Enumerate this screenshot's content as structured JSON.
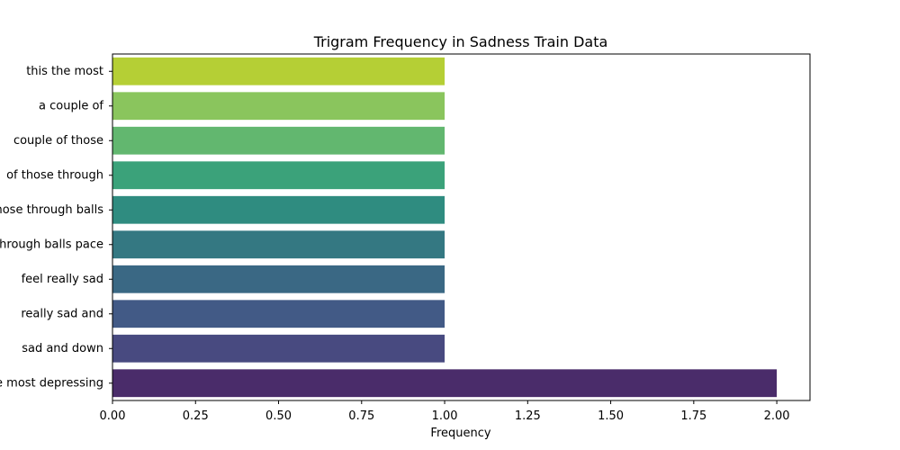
{
  "chart_data": {
    "type": "bar",
    "orientation": "horizontal",
    "title": "Trigram Frequency in Sadness Train Data",
    "xlabel": "Frequency",
    "ylabel": "",
    "xlim": [
      0,
      2.1
    ],
    "xticks": [
      "0.00",
      "0.25",
      "0.50",
      "0.75",
      "1.00",
      "1.25",
      "1.50",
      "1.75",
      "2.00"
    ],
    "grid": false,
    "legend": "none",
    "categories": [
      "this the most",
      "a couple of",
      "couple of those",
      "of those through",
      "those through balls",
      "through balls pace",
      "feel really sad",
      "really sad and",
      "sad and down",
      "the most depressing"
    ],
    "values": [
      1,
      1,
      1,
      1,
      1,
      1,
      1,
      1,
      1,
      2
    ],
    "colors": [
      "#b5cf35",
      "#8ac55d",
      "#62b76f",
      "#3ba27a",
      "#2f8c80",
      "#347882",
      "#3a6884",
      "#425a86",
      "#484a80",
      "#4a2c6a"
    ]
  }
}
